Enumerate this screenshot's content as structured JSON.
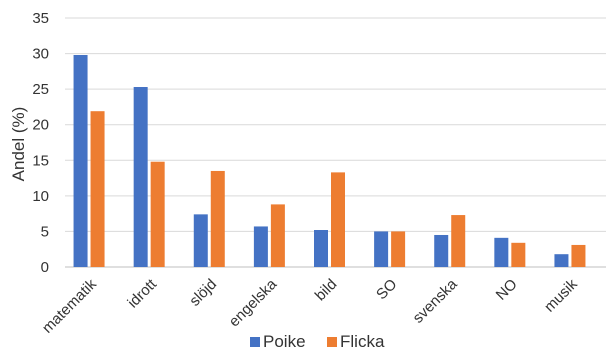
{
  "chart_data": {
    "type": "bar",
    "categories": [
      "matematik",
      "idrott",
      "slöjd",
      "engelska",
      "bild",
      "SO",
      "svenska",
      "NO",
      "musik"
    ],
    "series": [
      {
        "name": "Poike",
        "color": "#4472C4",
        "values": [
          29.8,
          25.3,
          7.4,
          5.7,
          5.2,
          5.0,
          4.5,
          4.1,
          1.8
        ]
      },
      {
        "name": "Flicka",
        "color": "#ED7D31",
        "values": [
          21.9,
          14.8,
          13.5,
          8.8,
          13.3,
          5.0,
          7.3,
          3.4,
          3.1
        ]
      }
    ],
    "ylabel": "Andel (%)",
    "xlabel": "",
    "ylim": [
      0,
      35
    ],
    "yticks": [
      0,
      5,
      10,
      15,
      20,
      25,
      30,
      35
    ],
    "grid": true,
    "legend": "bottom"
  }
}
